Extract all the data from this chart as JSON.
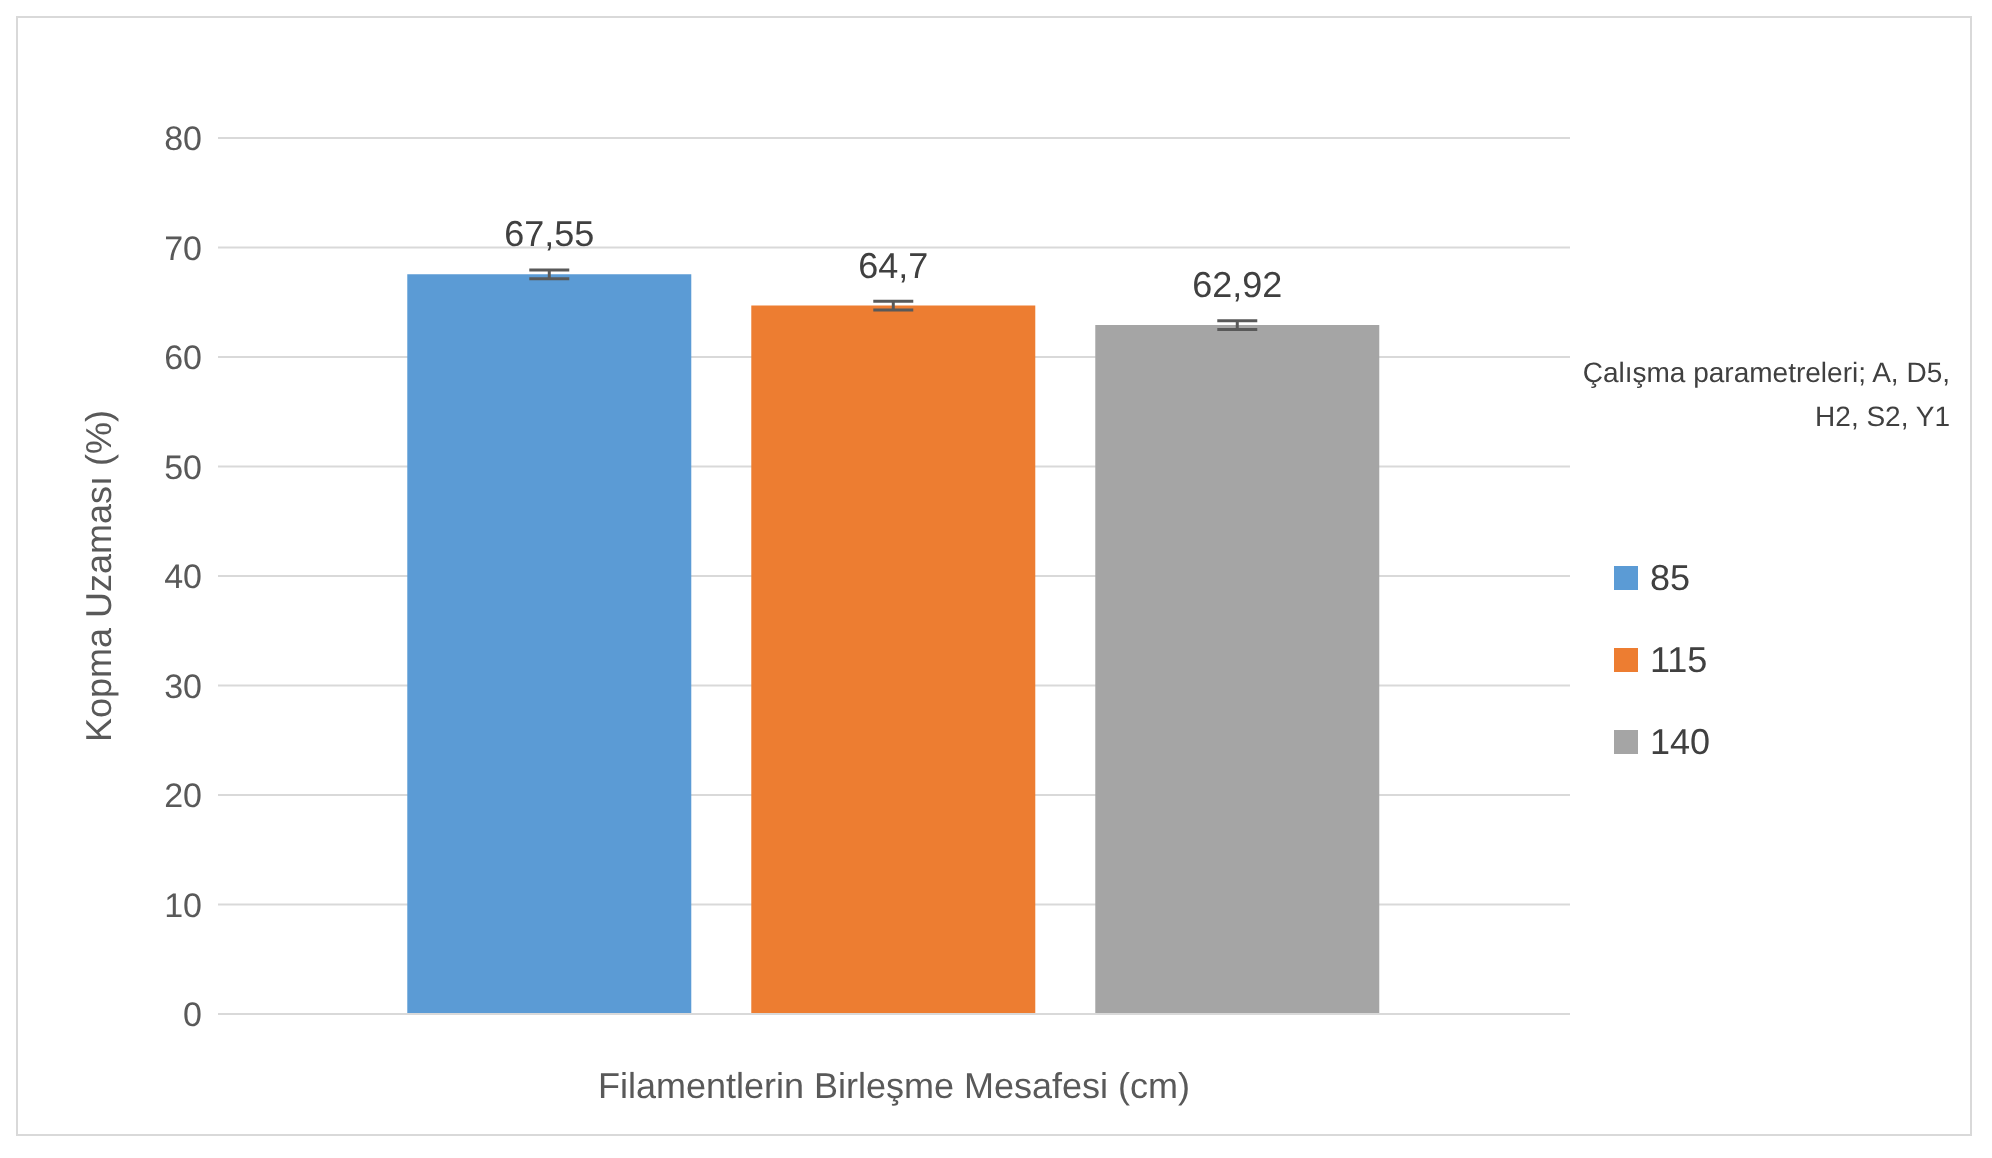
{
  "chart_data": {
    "type": "bar",
    "xlabel": "Filamentlerin Birleşme Mesafesi (cm)",
    "ylabel": "Kopma Uzaması (%)",
    "legend_title": "Çalışma parametreleri; A, D5, H2, S2, Y1",
    "categories": [
      null
    ],
    "series": [
      {
        "name": "85",
        "color": "#5b9bd5",
        "values": [
          67.55
        ],
        "errors": [
          0.4
        ],
        "value_labels": [
          "67,55"
        ]
      },
      {
        "name": "115",
        "color": "#ed7d31",
        "values": [
          64.7
        ],
        "errors": [
          0.4
        ],
        "value_labels": [
          "64,7"
        ]
      },
      {
        "name": "140",
        "color": "#a5a5a5",
        "values": [
          62.92
        ],
        "errors": [
          0.4
        ],
        "value_labels": [
          "62,92"
        ]
      }
    ],
    "ylim": [
      0,
      80
    ],
    "yticks": [
      0,
      10,
      20,
      30,
      40,
      50,
      60,
      70,
      80
    ],
    "grid": "y",
    "legend": "right"
  }
}
